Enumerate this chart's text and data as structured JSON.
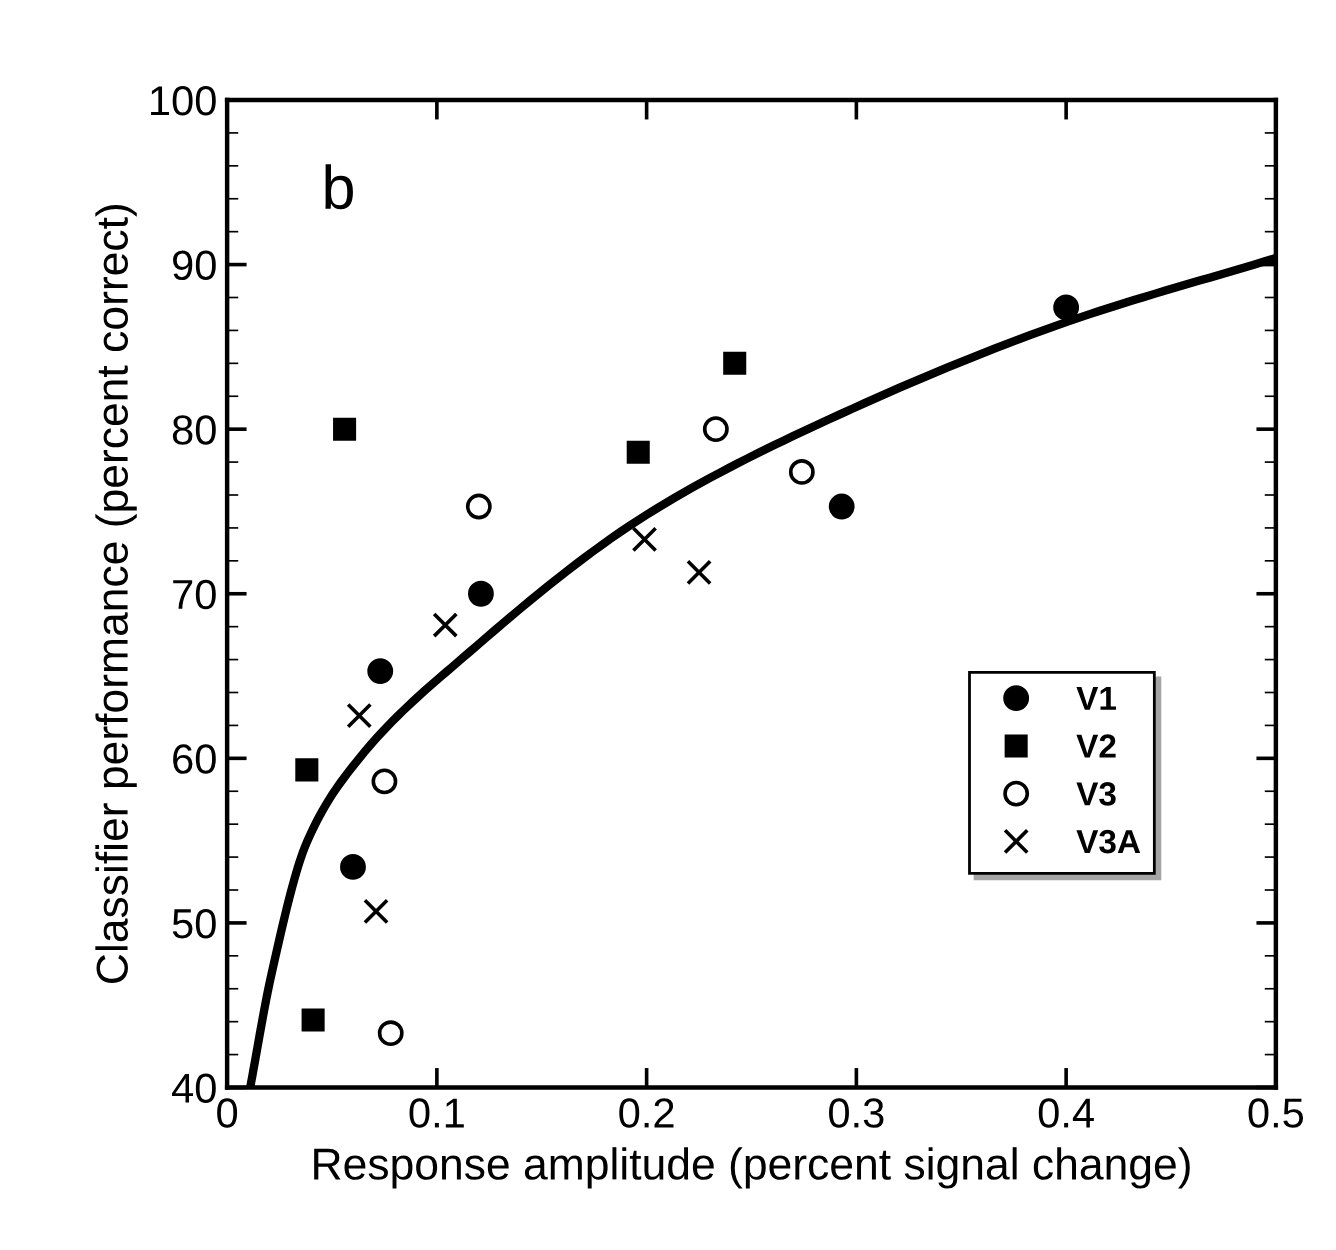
{
  "chart_data": {
    "type": "scatter",
    "xlabel": "Response amplitude (percent signal change)",
    "ylabel": "Classifier performance (percent correct)",
    "annotations": [
      "b"
    ],
    "series": [
      {
        "name": "V1",
        "color": "#000000",
        "marker": "circle",
        "x": [
          0.121,
          0.073,
          0.06,
          0.4,
          0.293
        ],
        "values": [
          70.0,
          65.3,
          53.4,
          87.4,
          75.3
        ]
      },
      {
        "name": "V2",
        "color": "#000000",
        "marker": "square",
        "x": [
          0.056,
          0.242,
          0.196,
          0.038,
          0.041
        ],
        "values": [
          80.0,
          84.0,
          78.6,
          59.3,
          44.1
        ]
      },
      {
        "name": "V3",
        "color": "#ffffff",
        "marker": "circle",
        "x": [
          0.233,
          0.12,
          0.075,
          0.078,
          0.274
        ],
        "values": [
          80.0,
          75.3,
          58.6,
          43.3,
          77.4
        ]
      },
      {
        "name": "V3A",
        "color": "#000000",
        "marker": "cross",
        "x": [
          0.199,
          0.225,
          0.104,
          0.063,
          0.071
        ],
        "values": [
          73.3,
          71.3,
          68.1,
          62.6,
          50.7
        ]
      },
      {
        "type": "line",
        "color": "#000000",
        "marker": "none",
        "x": [
          0.011,
          0.021,
          0.038,
          0.063,
          0.115,
          0.2,
          0.287,
          0.4,
          0.5
        ],
        "values": [
          40,
          46.8,
          54.9,
          60,
          66.4,
          74.8,
          80.6,
          86.5,
          90.4
        ]
      }
    ],
    "xlim": [
      0,
      0.5
    ],
    "xticks": [
      0,
      0.1,
      0.2,
      0.3,
      0.4,
      0.5
    ],
    "ylim": [
      40,
      100
    ],
    "yticks": [
      40,
      50,
      60,
      70,
      80,
      90,
      100
    ],
    "grid": false,
    "legend": "bottom right"
  }
}
